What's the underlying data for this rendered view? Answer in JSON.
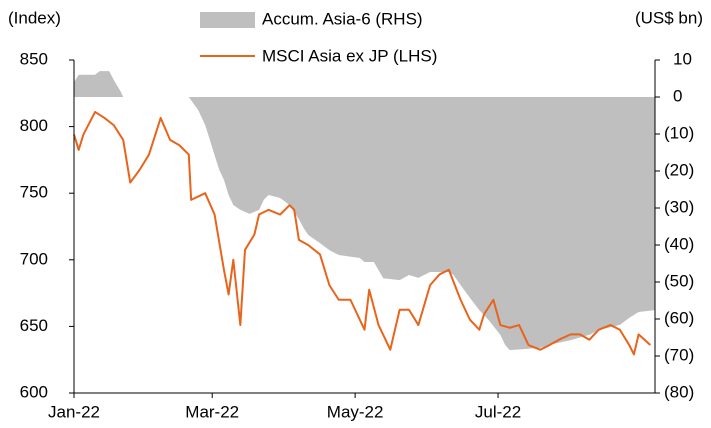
{
  "chart_data": {
    "type": "line",
    "y_label": "(Index)",
    "y2_label": "(US$ bn)",
    "xlim": [
      0,
      248
    ],
    "xticks": [
      {
        "value": 0,
        "label": "Jan-22"
      },
      {
        "value": 59,
        "label": "Mar-22"
      },
      {
        "value": 120,
        "label": "May-22"
      },
      {
        "value": 181,
        "label": "Jul-22"
      }
    ],
    "ylim": [
      600,
      850
    ],
    "yticks": [
      600,
      650,
      700,
      750,
      800,
      850
    ],
    "y2lim": [
      -80,
      10
    ],
    "y2ticks": [
      {
        "value": -80,
        "label": "(80)"
      },
      {
        "value": -70,
        "label": "(70)"
      },
      {
        "value": -60,
        "label": "(60)"
      },
      {
        "value": -50,
        "label": "(50)"
      },
      {
        "value": -40,
        "label": "(40)"
      },
      {
        "value": -30,
        "label": "(30)"
      },
      {
        "value": -20,
        "label": "(20)"
      },
      {
        "value": -10,
        "label": "(10)"
      },
      0,
      10
    ],
    "grid": false,
    "series": [
      {
        "name": "Accum. Asia-6 (RHS)",
        "type": "area",
        "axis": "y2",
        "color": "#bfbfbf",
        "x": [
          0,
          2,
          9,
          11,
          15,
          17,
          20,
          21,
          49,
          53,
          56,
          58,
          60,
          62,
          64,
          66,
          68,
          71,
          75,
          79,
          81,
          83,
          88,
          92,
          96,
          98,
          100,
          105,
          109,
          113,
          122,
          124,
          128,
          130,
          132,
          139,
          143,
          147,
          152,
          160,
          162,
          165,
          169,
          173,
          177,
          182,
          184,
          186,
          199,
          203,
          212,
          220,
          224,
          233,
          237,
          241,
          248
        ],
        "values": [
          4,
          6,
          6,
          7,
          7,
          4.6,
          1.4,
          0,
          0,
          -3.5,
          -7.6,
          -11.6,
          -15.7,
          -19.7,
          -22.4,
          -26.5,
          -29.2,
          -30.5,
          -31.6,
          -30.5,
          -27.8,
          -26.5,
          -27.3,
          -29.2,
          -33,
          -35.4,
          -37.3,
          -39.5,
          -41.4,
          -42.7,
          -43.5,
          -44.6,
          -44.6,
          -46.8,
          -49,
          -49.5,
          -48.1,
          -48.9,
          -47.3,
          -47.3,
          -48.1,
          -50.8,
          -54.3,
          -57.6,
          -60.3,
          -64.3,
          -67,
          -68.4,
          -67.8,
          -67,
          -65.7,
          -64.3,
          -63,
          -61.6,
          -59.7,
          -58.1,
          -57.6
        ]
      },
      {
        "name": "MSCI Asia ex JP (LHS)",
        "type": "line",
        "axis": "y",
        "color": "#e8641b",
        "x": [
          0,
          2,
          4,
          9,
          13,
          17,
          21,
          24,
          28,
          32,
          37,
          41,
          45,
          49,
          50,
          56,
          60,
          64,
          66,
          68,
          71,
          73,
          77,
          79,
          83,
          88,
          92,
          94,
          96,
          100,
          105,
          109,
          113,
          118,
          122,
          124,
          126,
          130,
          135,
          139,
          143,
          147,
          152,
          156,
          160,
          165,
          169,
          173,
          175,
          179,
          182,
          186,
          190,
          194,
          199,
          203,
          207,
          212,
          216,
          220,
          224,
          229,
          233,
          237,
          239,
          241,
          246
        ],
        "values": [
          794,
          782.5,
          794,
          811,
          806.5,
          801,
          790,
          758,
          767.5,
          779,
          806.5,
          790,
          786,
          779,
          745,
          750,
          734,
          692.5,
          674,
          700,
          651,
          707.5,
          719,
          734,
          737.5,
          734,
          741,
          737.5,
          715,
          711,
          704,
          681,
          670,
          670,
          655,
          647.5,
          677.5,
          651,
          632.5,
          662.5,
          662.5,
          651,
          681,
          689,
          692.5,
          670,
          655,
          647.5,
          659,
          670,
          651,
          649,
          651,
          636,
          632.5,
          636,
          640,
          644,
          644,
          640,
          647.5,
          651,
          647.5,
          636,
          629,
          644,
          636
        ]
      }
    ]
  }
}
